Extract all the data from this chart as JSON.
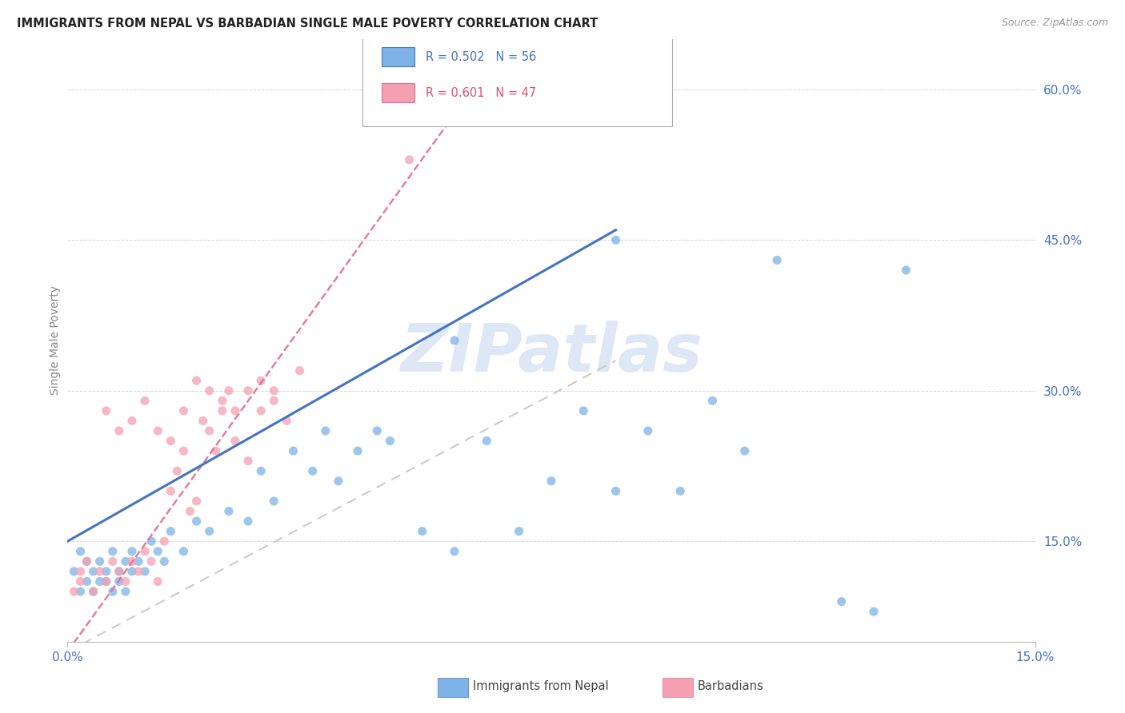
{
  "title": "IMMIGRANTS FROM NEPAL VS BARBADIAN SINGLE MALE POVERTY CORRELATION CHART",
  "source": "Source: ZipAtlas.com",
  "ylabel": "Single Male Poverty",
  "xlim": [
    0.0,
    0.15
  ],
  "ylim": [
    0.05,
    0.65
  ],
  "yticks": [
    0.15,
    0.3,
    0.45,
    0.6
  ],
  "ytick_labels": [
    "15.0%",
    "30.0%",
    "45.0%",
    "60.0%"
  ],
  "xtick_labels": [
    "0.0%",
    "15.0%"
  ],
  "legend_r1": "R = 0.502   N = 56",
  "legend_r2": "R = 0.601   N = 47",
  "series1_color": "#7eb3e8",
  "series2_color": "#f4a0b0",
  "trendline1_color": "#4472c4",
  "trendline2_color": "#e07090",
  "trendline_dash_color": "#ccbbcc",
  "series1_label": "Immigrants from Nepal",
  "series2_label": "Barbadians",
  "watermark": "ZIPatlas",
  "watermark_color": "#c8d8f0",
  "nepal_x": [
    0.001,
    0.002,
    0.002,
    0.003,
    0.003,
    0.004,
    0.004,
    0.005,
    0.005,
    0.006,
    0.006,
    0.007,
    0.007,
    0.008,
    0.008,
    0.009,
    0.009,
    0.01,
    0.01,
    0.011,
    0.012,
    0.013,
    0.014,
    0.015,
    0.016,
    0.018,
    0.02,
    0.022,
    0.025,
    0.028,
    0.03,
    0.032,
    0.035,
    0.038,
    0.04,
    0.042,
    0.045,
    0.048,
    0.05,
    0.055,
    0.06,
    0.065,
    0.07,
    0.075,
    0.08,
    0.085,
    0.09,
    0.095,
    0.1,
    0.105,
    0.11,
    0.12,
    0.125,
    0.13,
    0.06,
    0.085
  ],
  "nepal_y": [
    0.12,
    0.1,
    0.14,
    0.11,
    0.13,
    0.1,
    0.12,
    0.11,
    0.13,
    0.12,
    0.11,
    0.1,
    0.14,
    0.12,
    0.11,
    0.13,
    0.1,
    0.12,
    0.14,
    0.13,
    0.12,
    0.15,
    0.14,
    0.13,
    0.16,
    0.14,
    0.17,
    0.16,
    0.18,
    0.17,
    0.22,
    0.19,
    0.24,
    0.22,
    0.26,
    0.21,
    0.24,
    0.26,
    0.25,
    0.16,
    0.14,
    0.25,
    0.16,
    0.21,
    0.28,
    0.2,
    0.26,
    0.2,
    0.29,
    0.24,
    0.43,
    0.09,
    0.08,
    0.42,
    0.35,
    0.45
  ],
  "barbadian_x": [
    0.001,
    0.002,
    0.002,
    0.003,
    0.004,
    0.005,
    0.006,
    0.007,
    0.008,
    0.009,
    0.01,
    0.011,
    0.012,
    0.013,
    0.014,
    0.015,
    0.016,
    0.017,
    0.018,
    0.019,
    0.02,
    0.021,
    0.022,
    0.023,
    0.024,
    0.025,
    0.026,
    0.028,
    0.03,
    0.032,
    0.018,
    0.02,
    0.022,
    0.024,
    0.026,
    0.028,
    0.03,
    0.032,
    0.034,
    0.036,
    0.006,
    0.008,
    0.01,
    0.012,
    0.014,
    0.016,
    0.053
  ],
  "barbadian_y": [
    0.1,
    0.12,
    0.11,
    0.13,
    0.1,
    0.12,
    0.11,
    0.13,
    0.12,
    0.11,
    0.13,
    0.12,
    0.14,
    0.13,
    0.11,
    0.15,
    0.2,
    0.22,
    0.24,
    0.18,
    0.19,
    0.27,
    0.26,
    0.24,
    0.28,
    0.3,
    0.25,
    0.23,
    0.28,
    0.3,
    0.28,
    0.31,
    0.3,
    0.29,
    0.28,
    0.3,
    0.31,
    0.29,
    0.27,
    0.32,
    0.28,
    0.26,
    0.27,
    0.29,
    0.26,
    0.25,
    0.53
  ],
  "nepal_trendline": [
    0.0,
    0.15,
    0.085,
    0.46
  ],
  "barbadian_trendline": [
    0.0,
    0.04,
    0.085,
    0.33
  ],
  "barbadian_dash_trendline": [
    0.0,
    0.04,
    0.065,
    0.62
  ]
}
